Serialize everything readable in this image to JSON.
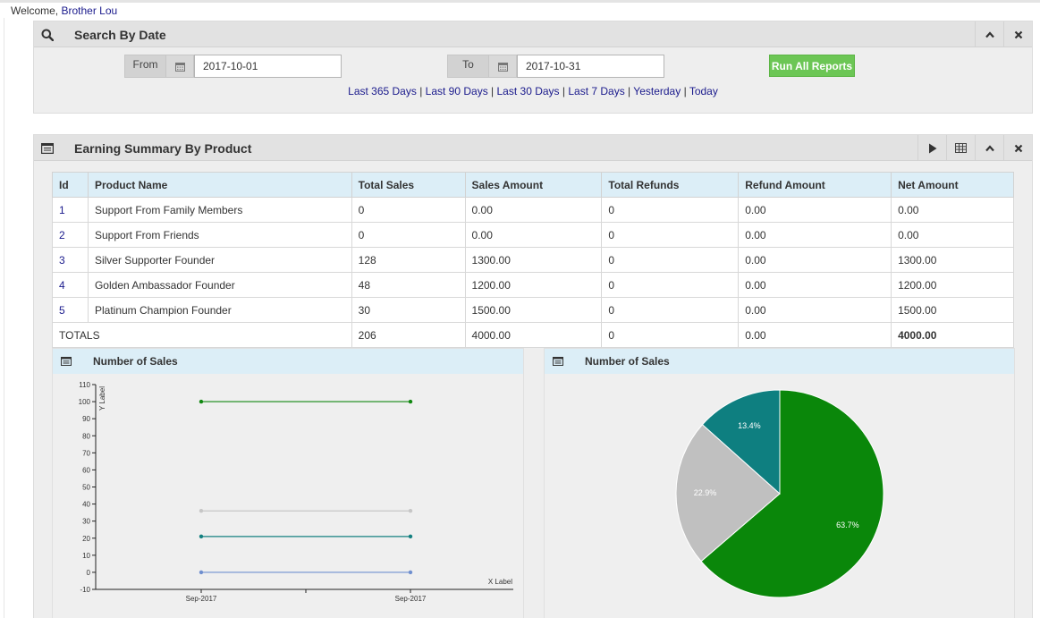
{
  "welcome": {
    "prefix": "Welcome, ",
    "user": "Brother Lou"
  },
  "search_panel": {
    "title": "Search By Date",
    "icon": "search-icon",
    "from_label": "From",
    "from_value": "2017-10-01",
    "to_label": "To",
    "to_value": "2017-10-31",
    "run_button": "Run All Reports",
    "quick_links": [
      "Last 365 Days",
      "Last 90 Days",
      "Last 30 Days",
      "Last 7 Days",
      "Yesterday",
      "Today"
    ],
    "separator": "|"
  },
  "earning_panel": {
    "title": "Earning Summary By Product",
    "columns": [
      "Id",
      "Product Name",
      "Total Sales",
      "Sales Amount",
      "Total Refunds",
      "Refund Amount",
      "Net Amount"
    ],
    "rows": [
      [
        "1",
        "Support From Family Members",
        "0",
        "0.00",
        "0",
        "0.00",
        "0.00"
      ],
      [
        "2",
        "Support From Friends",
        "0",
        "0.00",
        "0",
        "0.00",
        "0.00"
      ],
      [
        "3",
        "Silver Supporter Founder",
        "128",
        "1300.00",
        "0",
        "0.00",
        "1300.00"
      ],
      [
        "4",
        "Golden Ambassador Founder",
        "48",
        "1200.00",
        "0",
        "0.00",
        "1200.00"
      ],
      [
        "5",
        "Platinum Champion Founder",
        "30",
        "1500.00",
        "0",
        "0.00",
        "1500.00"
      ]
    ],
    "totals": {
      "label": "TOTALS",
      "total_sales": "206",
      "sales_amount": "4000.00",
      "total_refunds": "0",
      "refund_amount": "0.00",
      "net_amount": "4000.00"
    }
  },
  "chart_data": [
    {
      "type": "line",
      "title": "Number of Sales",
      "xlabel": "X Label",
      "ylabel": "Y Label",
      "categories": [
        "Sep-2017",
        "Sep-2017"
      ],
      "ylim": [
        -10,
        110
      ],
      "yticks": [
        -10,
        0,
        10,
        20,
        30,
        40,
        50,
        60,
        70,
        80,
        90,
        100,
        110
      ],
      "series": [
        {
          "values": [
            100,
            100
          ],
          "color": "#118811"
        },
        {
          "values": [
            36,
            36
          ],
          "color": "#c6c6c6"
        },
        {
          "values": [
            21,
            21
          ],
          "color": "#148080"
        },
        {
          "values": [
            0,
            0
          ],
          "color": "#6f8fcf"
        }
      ],
      "grid": false
    },
    {
      "type": "pie",
      "title": "Number of Sales",
      "slices": [
        {
          "label": "63.7%",
          "value": 63.7,
          "color": "#0a870a"
        },
        {
          "label": "22.9%",
          "value": 22.9,
          "color": "#c0c0c0"
        },
        {
          "label": "13.4%",
          "value": 13.4,
          "color": "#0e7f80"
        }
      ]
    }
  ]
}
